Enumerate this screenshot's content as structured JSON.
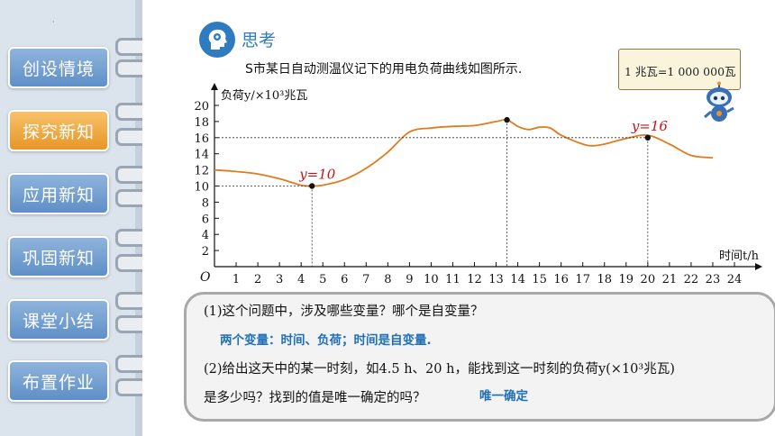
{
  "sidebar": {
    "items": [
      {
        "label": "创设情境",
        "active": false
      },
      {
        "label": "探究新知",
        "active": true
      },
      {
        "label": "应用新知",
        "active": false
      },
      {
        "label": "巩固新知",
        "active": false
      },
      {
        "label": "课堂小结",
        "active": false
      },
      {
        "label": "布置作业",
        "active": false
      }
    ]
  },
  "header": {
    "title": "思考",
    "intro": "S市某日自动测温仪记下的用电负荷曲线如图所示."
  },
  "note": {
    "text": "1 兆瓦=1 000 000瓦"
  },
  "chart_data": {
    "type": "line",
    "ylabel": "负荷y/×10³兆瓦",
    "xlabel": "时间t/h",
    "origin_label": "O",
    "xlim": [
      0,
      24
    ],
    "ylim": [
      0,
      20
    ],
    "xticks": [
      "1",
      "2",
      "3",
      "4",
      "5",
      "6",
      "7",
      "8",
      "9",
      "10",
      "11",
      "12",
      "13",
      "14",
      "15",
      "16",
      "17",
      "18",
      "19",
      "20",
      "21",
      "22",
      "23",
      "24"
    ],
    "yticks": [
      "2",
      "4",
      "6",
      "8",
      "10",
      "12",
      "14",
      "16",
      "18",
      "20"
    ],
    "series": [
      {
        "x": [
          0,
          1,
          2,
          3,
          4,
          4.5,
          5,
          6,
          7,
          8,
          9,
          10,
          11,
          12,
          13,
          13.5,
          14,
          14.5,
          15,
          15.5,
          16,
          17,
          17.5,
          18,
          19,
          20,
          21,
          22,
          23
        ],
        "y": [
          12,
          11.8,
          11.5,
          10.9,
          10.1,
          10,
          10.1,
          10.8,
          12.2,
          14.2,
          16.7,
          17.2,
          17.4,
          17.5,
          18,
          18.2,
          17.4,
          17,
          17.3,
          17.2,
          16.3,
          15.2,
          15,
          15.2,
          15.9,
          16.3,
          15.2,
          13.8,
          13.5
        ]
      }
    ],
    "points": [
      {
        "x": 4.5,
        "y": 10,
        "label": "y=10"
      },
      {
        "x": 13.5,
        "y": 18.2,
        "label": ""
      },
      {
        "x": 20,
        "y": 16,
        "label": "y=16"
      }
    ],
    "color": "#e07b1e"
  },
  "questions": {
    "q1": "(1)这个问题中，涉及哪些变量？哪个是自变量？",
    "a1": "两个变量：时间、负荷；时间是自变量.",
    "q2_line1": "(2)给出这天中的某一时刻，如4.5 h、20 h，能找到这一时刻的负荷y(×10³兆瓦)",
    "q2_line2": "是多少吗？找到的值是唯一确定的吗？",
    "a2": "唯一确定"
  },
  "colors": {
    "accent": "#2f7bc0",
    "active_nav": "#e89526",
    "nav": "#6f9bd0",
    "point_label": "#c0141b"
  }
}
